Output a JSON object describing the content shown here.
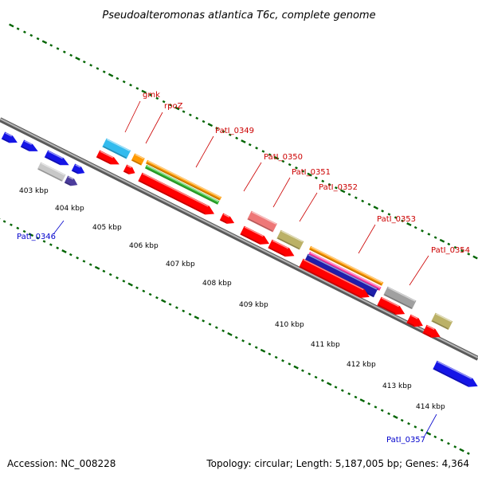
{
  "title": "Pseudoalteromonas atlantica T6c, complete genome",
  "footer": {
    "accession": "Accession: NC_008228",
    "stats": "Topology: circular; Length: 5,187,005 bp; Genes: 4,364"
  },
  "kbp_labels": [
    "403 kbp",
    "404 kbp",
    "405 kbp",
    "406 kbp",
    "407 kbp",
    "408 kbp",
    "409 kbp",
    "410 kbp",
    "411 kbp",
    "412 kbp",
    "413 kbp",
    "414 kbp"
  ],
  "gene_labels": [
    {
      "text": "gmk",
      "color": "#cc0000"
    },
    {
      "text": "rpoZ",
      "color": "#cc0000"
    },
    {
      "text": "PatI_0349",
      "color": "#cc0000"
    },
    {
      "text": "PatI_0350",
      "color": "#cc0000"
    },
    {
      "text": "PatI_0351",
      "color": "#cc0000"
    },
    {
      "text": "PatI_0352",
      "color": "#cc0000"
    },
    {
      "text": "PatI_0353",
      "color": "#cc0000"
    },
    {
      "text": "PatI_0354",
      "color": "#cc0000"
    },
    {
      "text": "PatI_0346",
      "color": "#0000cc"
    },
    {
      "text": "PatI_0357",
      "color": "#0000cc"
    }
  ],
  "colors": {
    "cds_forward": "#ff0000",
    "cds_reverse": "#0000ff",
    "backbone": "#888888",
    "tick": "#006400"
  }
}
